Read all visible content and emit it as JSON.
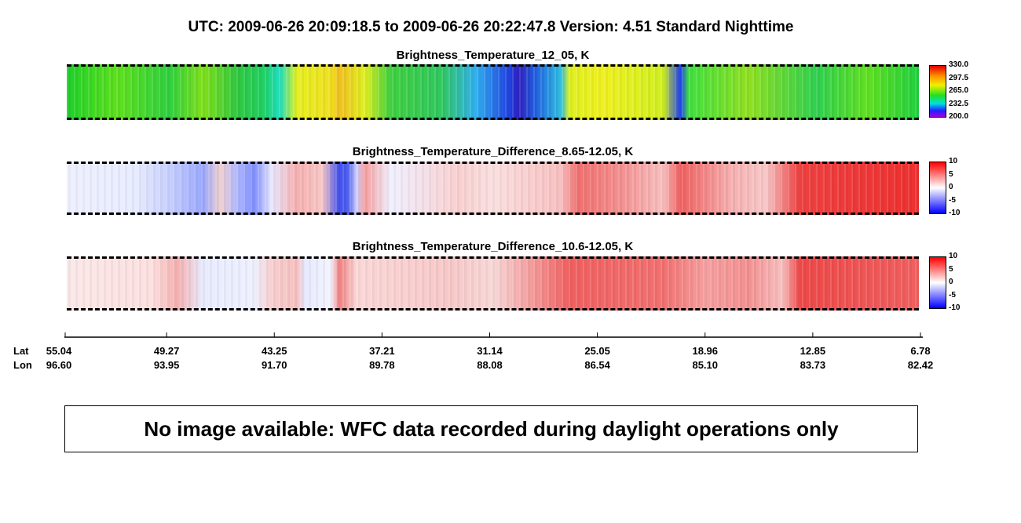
{
  "header": {
    "title": "UTC:  2009-06-26   20:09:18.5  to  2009-06-26   20:22:47.8    Version: 4.51  Standard Nighttime"
  },
  "panels": [
    {
      "title": "Brightness_Temperature_12_05, K",
      "colorbar_ticks": [
        "330.0",
        "297.5",
        "265.0",
        "232.5",
        "200.0"
      ]
    },
    {
      "title": "Brightness_Temperature_Difference_8.65-12.05, K",
      "colorbar_ticks": [
        "10",
        "5",
        "0",
        "-5",
        "-10"
      ]
    },
    {
      "title": "Brightness_Temperature_Difference_10.6-12.05, K",
      "colorbar_ticks": [
        "10",
        "5",
        "0",
        "-5",
        "-10"
      ]
    }
  ],
  "axis": {
    "lat_label": "Lat",
    "lon_label": "Lon",
    "lat": [
      "55.04",
      "49.27",
      "43.25",
      "37.21",
      "31.14",
      "25.05",
      "18.96",
      "12.85",
      "6.78"
    ],
    "lon": [
      "96.60",
      "93.95",
      "91.70",
      "89.78",
      "88.08",
      "86.54",
      "85.10",
      "83.73",
      "82.42"
    ]
  },
  "message": "No image available: WFC data recorded during daylight operations only"
}
